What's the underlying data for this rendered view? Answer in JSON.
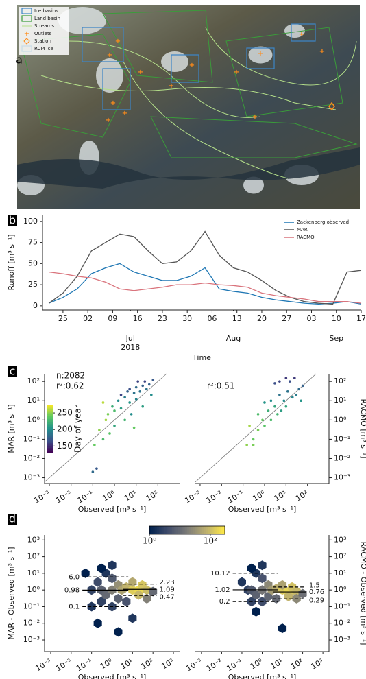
{
  "chart_data": [
    {
      "type": "map",
      "panel": "a",
      "series": [
        {
          "name": "Ice basins",
          "color": "#3d85c6"
        },
        {
          "name": "Land basin",
          "color": "#3a9c3a"
        },
        {
          "name": "Streams",
          "color": "#b5e08a"
        },
        {
          "name": "Outlets",
          "color": "#ff8c1a"
        },
        {
          "name": "Station",
          "color": "#ff8c1a"
        },
        {
          "name": "RCM ice",
          "color": "#c9dbe8"
        }
      ]
    },
    {
      "type": "line",
      "panel": "b",
      "ylabel": "Runoff [m³ s⁻¹]",
      "xlabel": "Time",
      "x": [
        "2018-06-21",
        "2018-06-25",
        "2018-06-29",
        "2018-07-03",
        "2018-07-07",
        "2018-07-11",
        "2018-07-15",
        "2018-07-19",
        "2018-07-23",
        "2018-07-27",
        "2018-07-31",
        "2018-08-04",
        "2018-08-08",
        "2018-08-12",
        "2018-08-16",
        "2018-08-20",
        "2018-08-24",
        "2018-08-28",
        "2018-09-01",
        "2018-09-05",
        "2018-09-09",
        "2018-09-13",
        "2018-09-17"
      ],
      "series": [
        {
          "name": "Zackenberg observed",
          "color": "#1f77b4",
          "values": [
            3,
            10,
            20,
            38,
            45,
            50,
            40,
            35,
            30,
            30,
            35,
            45,
            20,
            17,
            15,
            10,
            7,
            5,
            3,
            2,
            3,
            5,
            2
          ]
        },
        {
          "name": "MAR",
          "color": "#555555",
          "values": [
            3,
            15,
            35,
            65,
            75,
            85,
            82,
            65,
            50,
            52,
            65,
            88,
            60,
            45,
            40,
            30,
            18,
            10,
            5,
            3,
            2,
            40,
            42
          ]
        },
        {
          "name": "RACMO",
          "color": "#d9737c",
          "values": [
            40,
            38,
            35,
            33,
            28,
            20,
            18,
            20,
            22,
            25,
            25,
            27,
            25,
            24,
            22,
            15,
            12,
            10,
            8,
            5,
            5,
            5,
            3
          ]
        }
      ],
      "xlim": [
        "2018-06-20",
        "2018-09-17"
      ],
      "ylim": [
        -5,
        108
      ],
      "yticks": [
        0,
        25,
        50,
        75,
        100
      ],
      "xticks": [
        {
          "value": "2018-06-25",
          "label": "25"
        },
        {
          "value": "2018-07-02",
          "label": "02"
        },
        {
          "value": "2018-07-09",
          "label": "09"
        },
        {
          "value": "2018-07-16",
          "label": "16"
        },
        {
          "value": "2018-07-23",
          "label": "23"
        },
        {
          "value": "2018-07-30",
          "label": "30"
        },
        {
          "value": "2018-08-06",
          "label": "06"
        },
        {
          "value": "2018-08-13",
          "label": "13"
        },
        {
          "value": "2018-08-20",
          "label": "20"
        },
        {
          "value": "2018-08-27",
          "label": "27"
        },
        {
          "value": "2018-09-03",
          "label": "03"
        },
        {
          "value": "2018-09-10",
          "label": "10"
        },
        {
          "value": "2018-09-17",
          "label": "17"
        }
      ],
      "month_ticks": [
        {
          "value": "2018-07-14",
          "label": "Jul"
        },
        {
          "value": "2018-08-12",
          "label": "Aug"
        },
        {
          "value": "2018-09-10",
          "label": "Sep"
        }
      ],
      "year": "2018",
      "legend": "upper right"
    },
    {
      "type": "scatter",
      "panel": "c",
      "ylabel": "MAR [m³ s⁻¹]",
      "xlabel": "Observed [m³ s⁻¹]",
      "annotations": [
        "n:2082",
        "r²:0.62"
      ],
      "yaxis": "left",
      "log": true,
      "x": [
        0.1,
        0.15,
        0.12,
        0.2,
        0.3,
        0.4,
        0.5,
        0.6,
        0.8,
        1,
        1,
        1.5,
        2,
        2,
        3,
        3,
        4,
        5,
        5,
        6,
        8,
        8,
        10,
        10,
        12,
        15,
        20,
        20,
        25,
        30,
        40,
        50,
        60,
        0.3
      ],
      "y": [
        0.002,
        0.003,
        0.05,
        0.3,
        0.1,
        1,
        2,
        0.2,
        5,
        3,
        0.5,
        10,
        4,
        20,
        1,
        15,
        30,
        8,
        40,
        2,
        25,
        0.4,
        50,
        12,
        100,
        30,
        60,
        5,
        100,
        40,
        70,
        20,
        120,
        8
      ],
      "c": [
        180,
        170,
        240,
        250,
        230,
        255,
        245,
        235,
        220,
        230,
        215,
        200,
        210,
        160,
        225,
        190,
        175,
        205,
        165,
        200,
        185,
        240,
        180,
        195,
        160,
        185,
        175,
        210,
        160,
        185,
        175,
        200,
        170,
        260
      ],
      "colormap": [
        "#440154",
        "#3b528b",
        "#21918c",
        "#5ec962",
        "#fde725"
      ],
      "clim": [
        130,
        275
      ],
      "colorbar": {
        "label": "Day of year",
        "ticks": [
          150,
          200,
          250
        ]
      },
      "xlim": [
        0.0006,
        1000
      ],
      "ylim": [
        0.0005,
        250
      ],
      "xticks": [
        {
          "value": 0.001,
          "label": "10⁻³"
        },
        {
          "value": 0.01,
          "label": "10⁻²"
        },
        {
          "value": 0.1,
          "label": "10⁻¹"
        },
        {
          "value": 1,
          "label": "10⁰"
        },
        {
          "value": 10,
          "label": "10¹"
        },
        {
          "value": 100,
          "label": "10²"
        }
      ],
      "yticks": [
        {
          "value": 0.001,
          "label": "10⁻³"
        },
        {
          "value": 0.01,
          "label": "10⁻²"
        },
        {
          "value": 0.1,
          "label": "10⁻¹"
        },
        {
          "value": 1,
          "label": "10⁰"
        },
        {
          "value": 10,
          "label": "10¹"
        },
        {
          "value": 100,
          "label": "10²"
        }
      ]
    },
    {
      "type": "scatter",
      "ylabel": "RACMO [m³ s⁻¹]",
      "xlabel": "Observed [m³ s⁻¹]",
      "annotations": [
        "r²:0.51"
      ],
      "yaxis": "right",
      "log": true,
      "x": [
        0.15,
        0.2,
        0.3,
        0.5,
        0.5,
        0.8,
        1,
        1.5,
        2,
        2,
        3,
        4,
        5,
        5,
        6,
        8,
        10,
        10,
        12,
        15,
        20,
        25,
        30,
        40,
        50,
        60,
        3,
        1,
        0.3
      ],
      "y": [
        0.05,
        0.5,
        0.1,
        0.3,
        2,
        1,
        0.5,
        3,
        1,
        10,
        5,
        2,
        20,
        100,
        3,
        10,
        150,
        5,
        30,
        100,
        15,
        150,
        20,
        40,
        10,
        60,
        80,
        8,
        0.05
      ],
      "c": [
        250,
        255,
        240,
        245,
        230,
        240,
        235,
        220,
        230,
        200,
        215,
        225,
        185,
        160,
        210,
        200,
        155,
        215,
        185,
        165,
        195,
        155,
        190,
        180,
        205,
        175,
        165,
        205,
        245
      ],
      "colormap": [
        "#440154",
        "#3b528b",
        "#21918c",
        "#5ec962",
        "#fde725"
      ],
      "clim": [
        130,
        275
      ],
      "xlim": [
        0.0006,
        1000
      ],
      "ylim": [
        0.0005,
        250
      ],
      "xticks": [
        {
          "value": 0.001,
          "label": "10⁻³"
        },
        {
          "value": 0.01,
          "label": "10⁻²"
        },
        {
          "value": 0.1,
          "label": "10⁻¹"
        },
        {
          "value": 1,
          "label": "10⁰"
        },
        {
          "value": 10,
          "label": "10¹"
        },
        {
          "value": 100,
          "label": "10²"
        }
      ],
      "yticks": [
        {
          "value": 0.001,
          "label": "10⁻³"
        },
        {
          "value": 0.01,
          "label": "10⁻²"
        },
        {
          "value": 0.1,
          "label": "10⁻¹"
        },
        {
          "value": 1,
          "label": "10⁰"
        },
        {
          "value": 10,
          "label": "10¹"
        },
        {
          "value": 100,
          "label": "10²"
        }
      ]
    },
    {
      "type": "hexbin",
      "panel": "d",
      "ylabel": "MAR - Observed [m³ s⁻¹]",
      "xlabel": "Observed [m³ s⁻¹]",
      "yaxis": "left",
      "log": true,
      "x": [
        0.1,
        0.1,
        0.2,
        0.3,
        0.3,
        0.5,
        0.5,
        1,
        1,
        1,
        2,
        2,
        3,
        5,
        5,
        10,
        10,
        20,
        20,
        30,
        50,
        50,
        100,
        0.2,
        2,
        10,
        0.05,
        0.3,
        1
      ],
      "y": [
        1,
        0.1,
        3,
        1,
        0.2,
        10,
        0.5,
        1,
        5,
        0.1,
        2,
        0.3,
        1,
        1.5,
        0.2,
        1,
        3,
        1,
        0.5,
        2,
        1,
        0.3,
        0.8,
        0.01,
        0.003,
        0.02,
        10,
        20,
        30
      ],
      "counts": [
        3,
        2,
        4,
        8,
        3,
        2,
        10,
        20,
        6,
        3,
        30,
        8,
        50,
        80,
        5,
        150,
        60,
        200,
        90,
        120,
        100,
        20,
        10,
        1,
        1,
        2,
        1,
        1,
        2
      ],
      "colormap": [
        "#00204d",
        "#414d6b",
        "#7c7b78",
        "#bcaf6f",
        "#ffea46"
      ],
      "clim": [
        1,
        300
      ],
      "colorbar": {
        "ticks": [
          {
            "value": 1,
            "label": "10⁰"
          },
          {
            "value": 100,
            "label": "10²"
          }
        ]
      },
      "stats_all": {
        "values": [
          6,
          0.98,
          0.1
        ],
        "value_labels": [
          "6.0",
          "0.98",
          "0.1"
        ]
      },
      "stats_high": {
        "values": [
          2.23,
          1.09,
          0.47
        ]
      },
      "xlim": [
        0.0005,
        2000
      ],
      "ylim": [
        0.0002,
        2000
      ],
      "xticks": [
        {
          "value": 0.001,
          "label": "10⁻³"
        },
        {
          "value": 0.01,
          "label": "10⁻²"
        },
        {
          "value": 0.1,
          "label": "10⁻¹"
        },
        {
          "value": 1,
          "label": "10⁰"
        },
        {
          "value": 10,
          "label": "10¹"
        },
        {
          "value": 100,
          "label": "10²"
        },
        {
          "value": 1000,
          "label": "10³"
        }
      ],
      "yticks": [
        {
          "value": 0.001,
          "label": "10⁻³"
        },
        {
          "value": 0.01,
          "label": "10⁻²"
        },
        {
          "value": 0.1,
          "label": "10⁻¹"
        },
        {
          "value": 1,
          "label": "10⁰"
        },
        {
          "value": 10,
          "label": "10¹"
        },
        {
          "value": 100,
          "label": "10²"
        },
        {
          "value": 1000,
          "label": "10³"
        }
      ]
    },
    {
      "type": "hexbin",
      "ylabel": "RACMO - Observed [m³ s⁻¹]",
      "xlabel": "Observed [m³ s⁻¹]",
      "yaxis": "right",
      "log": true,
      "x": [
        0.1,
        0.2,
        0.3,
        0.3,
        0.5,
        0.5,
        1,
        1,
        1,
        2,
        2,
        3,
        5,
        5,
        10,
        10,
        20,
        20,
        30,
        50,
        50,
        100,
        10,
        0.3,
        1,
        0.5
      ],
      "y": [
        3,
        1,
        1,
        0.2,
        10,
        0.5,
        1,
        5,
        0.2,
        2,
        0.4,
        1,
        1.2,
        0.3,
        1,
        2,
        0.8,
        0.4,
        1.5,
        0.8,
        0.3,
        0.6,
        0.005,
        20,
        30,
        0.05
      ],
      "counts": [
        2,
        3,
        6,
        3,
        2,
        8,
        15,
        5,
        4,
        25,
        9,
        40,
        70,
        10,
        130,
        50,
        180,
        80,
        110,
        90,
        25,
        12,
        1,
        1,
        2,
        1
      ],
      "colormap": [
        "#00204d",
        "#414d6b",
        "#7c7b78",
        "#bcaf6f",
        "#ffea46"
      ],
      "clim": [
        1,
        300
      ],
      "stats_all": {
        "values": [
          10.12,
          1.02,
          0.2
        ]
      },
      "stats_high": {
        "values": [
          1.5,
          0.76,
          0.29
        ]
      },
      "xlim": [
        0.0005,
        2000
      ],
      "ylim": [
        0.0002,
        2000
      ],
      "xticks": [
        {
          "value": 0.001,
          "label": "10⁻³"
        },
        {
          "value": 0.01,
          "label": "10⁻²"
        },
        {
          "value": 0.1,
          "label": "10⁻¹"
        },
        {
          "value": 1,
          "label": "10⁰"
        },
        {
          "value": 10,
          "label": "10¹"
        },
        {
          "value": 100,
          "label": "10²"
        },
        {
          "value": 1000,
          "label": "10³"
        }
      ],
      "yticks": [
        {
          "value": 0.001,
          "label": "10⁻³"
        },
        {
          "value": 0.01,
          "label": "10⁻²"
        },
        {
          "value": 0.1,
          "label": "10⁻¹"
        },
        {
          "value": 1,
          "label": "10⁰"
        },
        {
          "value": 10,
          "label": "10¹"
        },
        {
          "value": 100,
          "label": "10²"
        },
        {
          "value": 1000,
          "label": "10³"
        }
      ]
    }
  ]
}
